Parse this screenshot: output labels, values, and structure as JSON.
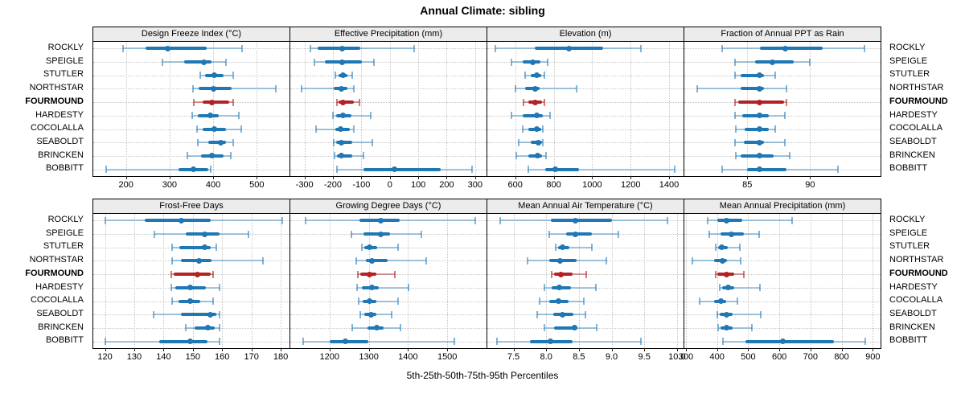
{
  "title": "Annual Climate: sibling",
  "caption": "5th-25th-50th-75th-95th Percentiles",
  "colors": {
    "blue": "#1f77b4",
    "blue_light": "rgba(31,119,180,0.40)",
    "blue_cap": "rgba(31,119,180,0.55)",
    "red": "#b22222",
    "red_light": "rgba(178,34,34,0.45)",
    "red_cap": "rgba(178,34,34,0.60)",
    "header_bg": "#ececec",
    "grid": "#c6c6c6",
    "border": "#000000"
  },
  "chart_data": {
    "type": "scatter",
    "subtype": "percentile-dot-whisker",
    "percentiles": [
      5,
      25,
      50,
      75,
      95
    ],
    "grid": "dotted",
    "categories": [
      "ROCKLY",
      "SPEIGLE",
      "STUTLER",
      "NORTHSTAR",
      "FOURMOUND",
      "HARDESTY",
      "COCOLALLA",
      "SEABOLDT",
      "BRINCKEN",
      "BOBBITT"
    ],
    "highlight_category": "FOURMOUND",
    "panels": [
      {
        "title": "Design Freeze Index (°C)",
        "xlim": [
          125,
          575
        ],
        "xticks": [
          200,
          300,
          400,
          500
        ],
        "xtick_labels": [
          "200",
          "300",
          "400",
          "500"
        ],
        "series": [
          {
            "name": "ROCKLY",
            "values": [
              193,
              245,
              296,
              385,
              467
            ]
          },
          {
            "name": "SPEIGLE",
            "values": [
              284,
              333,
              378,
              397,
              430
            ]
          },
          {
            "name": "STUTLER",
            "values": [
              371,
              382,
              402,
              424,
              445
            ]
          },
          {
            "name": "NORTHSTAR",
            "values": [
              353,
              367,
              400,
              442,
              544
            ]
          },
          {
            "name": "FOURMOUND",
            "values": [
              355,
              375,
              397,
              437,
              445
            ]
          },
          {
            "name": "HARDESTY",
            "values": [
              352,
              364,
              393,
              412,
              458
            ]
          },
          {
            "name": "COCOLALLA",
            "values": [
              362,
              376,
              402,
              430,
              465
            ]
          },
          {
            "name": "SEABOLDT",
            "values": [
              364,
              388,
              417,
              430,
              445
            ]
          },
          {
            "name": "BRINCKEN",
            "values": [
              341,
              373,
              397,
              424,
              441
            ]
          },
          {
            "name": "BOBBITT",
            "values": [
              155,
              320,
              355,
              388,
              395
            ]
          }
        ]
      },
      {
        "title": "Effective Precipitation (mm)",
        "xlim": [
          -350,
          340
        ],
        "xticks": [
          -300,
          -200,
          -100,
          0,
          100,
          200,
          300
        ],
        "xtick_labels": [
          "-300",
          "-200",
          "-100",
          "0",
          "100",
          "200",
          "300"
        ],
        "series": [
          {
            "name": "ROCKLY",
            "values": [
              -280,
              -255,
              -168,
              -105,
              85
            ]
          },
          {
            "name": "SPEIGLE",
            "values": [
              -265,
              -228,
              -168,
              -98,
              -56
            ]
          },
          {
            "name": "STUTLER",
            "values": [
              -192,
              -180,
              -165,
              -148,
              -133
            ]
          },
          {
            "name": "NORTHSTAR",
            "values": [
              -311,
              -196,
              -171,
              -150,
              -126
            ]
          },
          {
            "name": "FOURMOUND",
            "values": [
              -187,
              -180,
              -166,
              -126,
              -108
            ]
          },
          {
            "name": "HARDESTY",
            "values": [
              -201,
              -190,
              -166,
              -136,
              -68
            ]
          },
          {
            "name": "COCOLALLA",
            "values": [
              -259,
              -193,
              -173,
              -140,
              -128
            ]
          },
          {
            "name": "SEABOLDT",
            "values": [
              -196,
              -188,
              -170,
              -131,
              -61
            ]
          },
          {
            "name": "BRINCKEN",
            "values": [
              -194,
              -187,
              -170,
              -131,
              -93
            ]
          },
          {
            "name": "BOBBITT",
            "values": [
              -187,
              -93,
              17,
              178,
              290
            ]
          }
        ]
      },
      {
        "title": "Elevation (m)",
        "xlim": [
          455,
          1475
        ],
        "xticks": [
          600,
          800,
          1000,
          1200,
          1400
        ],
        "xtick_labels": [
          "600",
          "800",
          "1000",
          "1200",
          "1400"
        ],
        "series": [
          {
            "name": "ROCKLY",
            "values": [
              495,
              700,
              880,
              1055,
              1255
            ]
          },
          {
            "name": "SPEIGLE",
            "values": [
              580,
              640,
              690,
              730,
              770
            ]
          },
          {
            "name": "STUTLER",
            "values": [
              650,
              680,
              710,
              735,
              750
            ]
          },
          {
            "name": "NORTHSTAR",
            "values": [
              600,
              650,
              705,
              725,
              920
            ]
          },
          {
            "name": "FOURMOUND",
            "values": [
              645,
              670,
              705,
              740,
              750
            ]
          },
          {
            "name": "HARDESTY",
            "values": [
              580,
              640,
              710,
              745,
              780
            ]
          },
          {
            "name": "COCOLALLA",
            "values": [
              640,
              670,
              710,
              735,
              745
            ]
          },
          {
            "name": "SEABOLDT",
            "values": [
              620,
              680,
              720,
              740,
              745
            ]
          },
          {
            "name": "BRINCKEN",
            "values": [
              605,
              670,
              715,
              740,
              760
            ]
          },
          {
            "name": "BOBBITT",
            "values": [
              670,
              755,
              810,
              930,
              1430
            ]
          }
        ]
      },
      {
        "title": "Fraction of Annual PPT as Rain",
        "xlim": [
          80,
          95.6
        ],
        "xticks": [
          85,
          90
        ],
        "xtick_labels": [
          "85",
          "90"
        ],
        "series": [
          {
            "name": "ROCKLY",
            "values": [
              83,
              86,
              88,
              91,
              94.3
            ]
          },
          {
            "name": "SPEIGLE",
            "values": [
              84,
              85.6,
              87,
              88.7,
              90
            ]
          },
          {
            "name": "STUTLER",
            "values": [
              84,
              84.5,
              86,
              86.3,
              87.2
            ]
          },
          {
            "name": "NORTHSTAR",
            "values": [
              81,
              84.5,
              86,
              86.3,
              88.1
            ]
          },
          {
            "name": "FOURMOUND",
            "values": [
              84,
              84.3,
              86,
              87.9,
              88.1
            ]
          },
          {
            "name": "HARDESTY",
            "values": [
              84,
              84.6,
              86,
              86.7,
              88
            ]
          },
          {
            "name": "COCOLALLA",
            "values": [
              84.1,
              84.8,
              86,
              86.7,
              87.2
            ]
          },
          {
            "name": "SEABOLDT",
            "values": [
              84,
              84.7,
              86,
              86.3,
              88
            ]
          },
          {
            "name": "BRINCKEN",
            "values": [
              84.1,
              84.5,
              86,
              87.1,
              88.4
            ]
          },
          {
            "name": "BOBBITT",
            "values": [
              83,
              85,
              86,
              88.1,
              92.2
            ]
          }
        ]
      },
      {
        "title": "Frost-Free Days",
        "xlim": [
          116,
          183
        ],
        "xticks": [
          120,
          130,
          140,
          150,
          160,
          170,
          180
        ],
        "xtick_labels": [
          "120",
          "130",
          "140",
          "150",
          "160",
          "170",
          "180"
        ],
        "series": [
          {
            "name": "ROCKLY",
            "values": [
              120,
              133.5,
              146,
              156,
              180.5
            ]
          },
          {
            "name": "SPEIGLE",
            "values": [
              137,
              147.5,
              154,
              159,
              169
            ]
          },
          {
            "name": "STUTLER",
            "values": [
              143,
              145.5,
              154,
              156,
              158
            ]
          },
          {
            "name": "NORTHSTAR",
            "values": [
              143,
              146,
              152,
              156.5,
              174
            ]
          },
          {
            "name": "FOURMOUND",
            "values": [
              142.5,
              143.5,
              151.5,
              156,
              157
            ]
          },
          {
            "name": "HARDESTY",
            "values": [
              142.5,
              144,
              149,
              154.5,
              159
            ]
          },
          {
            "name": "COCOLALLA",
            "values": [
              143,
              145,
              149,
              152.5,
              157
            ]
          },
          {
            "name": "SEABOLDT",
            "values": [
              136.5,
              146,
              156,
              158,
              159
            ]
          },
          {
            "name": "BRINCKEN",
            "values": [
              147.5,
              150.5,
              155,
              157.5,
              159
            ]
          },
          {
            "name": "BOBBITT",
            "values": [
              120,
              138.5,
              149,
              155,
              159
            ]
          }
        ]
      },
      {
        "title": "Growing Degree Days (°C)",
        "xlim": [
          1100,
          1600
        ],
        "xticks": [
          1200,
          1300,
          1400,
          1500
        ],
        "xtick_labels": [
          "1200",
          "1300",
          "1400",
          "1500"
        ],
        "series": [
          {
            "name": "ROCKLY",
            "values": [
              1138,
              1277,
              1330,
              1378,
              1572
            ]
          },
          {
            "name": "SPEIGLE",
            "values": [
              1255,
              1287,
              1331,
              1354,
              1435
            ]
          },
          {
            "name": "STUTLER",
            "values": [
              1283,
              1288,
              1301,
              1322,
              1375
            ]
          },
          {
            "name": "NORTHSTAR",
            "values": [
              1268,
              1292,
              1308,
              1347,
              1446
            ]
          },
          {
            "name": "FOURMOUND",
            "values": [
              1273,
              1279,
              1301,
              1320,
              1366
            ]
          },
          {
            "name": "HARDESTY",
            "values": [
              1271,
              1282,
              1308,
              1326,
              1402
            ]
          },
          {
            "name": "COCOLALLA",
            "values": [
              1275,
              1285,
              1301,
              1320,
              1374
            ]
          },
          {
            "name": "SEABOLDT",
            "values": [
              1278,
              1289,
              1306,
              1320,
              1359
            ]
          },
          {
            "name": "BRINCKEN",
            "values": [
              1258,
              1296,
              1320,
              1337,
              1381
            ]
          },
          {
            "name": "BOBBITT",
            "values": [
              1133,
              1200,
              1241,
              1299,
              1519
            ]
          }
        ]
      },
      {
        "title": "Mean Annual Air Temperature (°C)",
        "xlim": [
          7.1,
          10.1
        ],
        "xticks": [
          7.5,
          8.0,
          8.5,
          9.0,
          9.5,
          10.0
        ],
        "xtick_labels": [
          "7.5",
          "8.0",
          "8.5",
          "9.0",
          "9.5",
          "10.0"
        ],
        "series": [
          {
            "name": "ROCKLY",
            "values": [
              7.3,
              8.07,
              8.45,
              9.0,
              9.85
            ]
          },
          {
            "name": "SPEIGLE",
            "values": [
              8.05,
              8.3,
              8.45,
              8.7,
              9.1
            ]
          },
          {
            "name": "STUTLER",
            "values": [
              8.15,
              8.18,
              8.25,
              8.35,
              8.7
            ]
          },
          {
            "name": "NORTHSTAR",
            "values": [
              7.72,
              8.05,
              8.21,
              8.46,
              8.92
            ]
          },
          {
            "name": "FOURMOUND",
            "values": [
              8.08,
              8.12,
              8.22,
              8.4,
              8.61
            ]
          },
          {
            "name": "HARDESTY",
            "values": [
              7.97,
              8.08,
              8.2,
              8.38,
              8.76
            ]
          },
          {
            "name": "COCOLALLA",
            "values": [
              7.9,
              8.05,
              8.19,
              8.34,
              8.58
            ]
          },
          {
            "name": "SEABOLDT",
            "values": [
              7.86,
              8.11,
              8.25,
              8.42,
              8.6
            ]
          },
          {
            "name": "BRINCKEN",
            "values": [
              7.97,
              8.12,
              8.44,
              8.48,
              8.77
            ]
          },
          {
            "name": "BOBBITT",
            "values": [
              7.25,
              7.75,
              8.06,
              8.4,
              9.45
            ]
          }
        ]
      },
      {
        "title": "Mean Annual Precipitation (mm)",
        "xlim": [
          295,
          925
        ],
        "xticks": [
          300,
          400,
          500,
          600,
          700,
          800,
          900
        ],
        "xtick_labels": [
          "300",
          "400",
          "500",
          "600",
          "700",
          "800",
          "900"
        ],
        "series": [
          {
            "name": "ROCKLY",
            "values": [
              370,
              400,
              430,
              480,
              640
            ]
          },
          {
            "name": "SPEIGLE",
            "values": [
              375,
              410,
              445,
              485,
              535
            ]
          },
          {
            "name": "STUTLER",
            "values": [
              395,
              403,
              416,
              434,
              473
            ]
          },
          {
            "name": "NORTHSTAR",
            "values": [
              320,
              390,
              418,
              433,
              477
            ]
          },
          {
            "name": "FOURMOUND",
            "values": [
              395,
              402,
              430,
              455,
              485
            ]
          },
          {
            "name": "HARDESTY",
            "values": [
              408,
              417,
              437,
              456,
              537
            ]
          },
          {
            "name": "COCOLALLA",
            "values": [
              345,
              390,
              412,
              430,
              466
            ]
          },
          {
            "name": "SEABOLDT",
            "values": [
              400,
              408,
              430,
              450,
              540
            ]
          },
          {
            "name": "BRINCKEN",
            "values": [
              403,
              412,
              430,
              450,
              512
            ]
          },
          {
            "name": "BOBBITT",
            "values": [
              420,
              490,
              610,
              775,
              875
            ]
          }
        ]
      }
    ]
  }
}
